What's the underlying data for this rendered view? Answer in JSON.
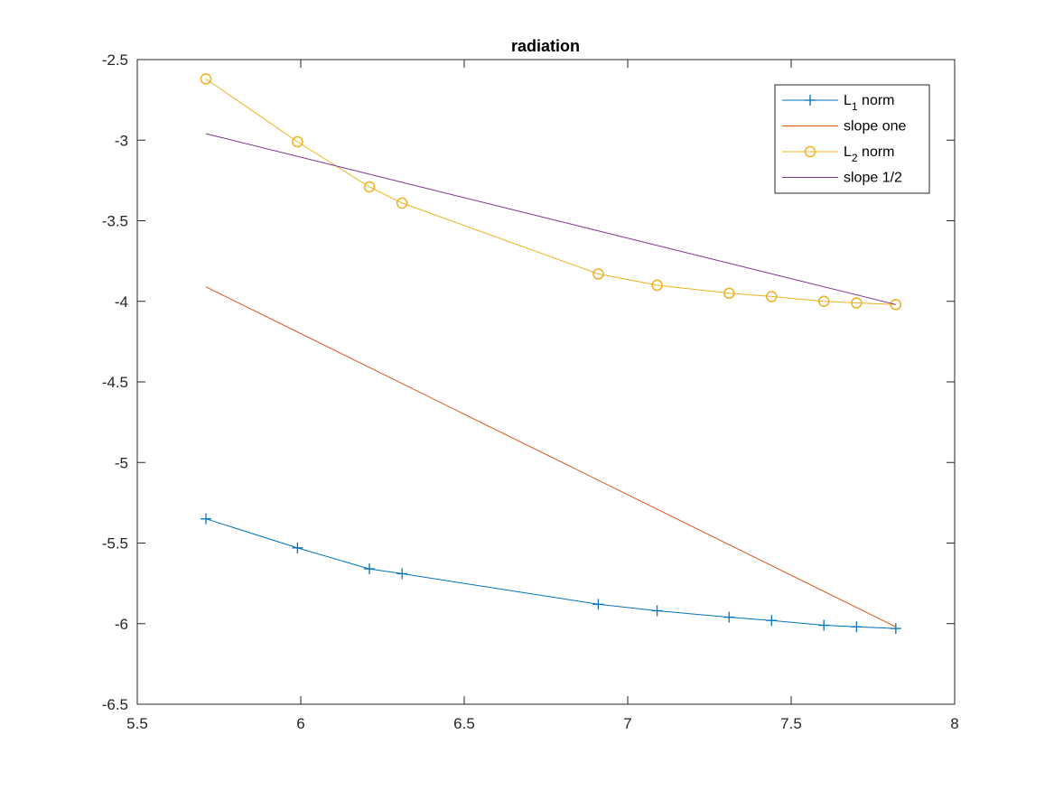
{
  "chart_data": {
    "type": "line",
    "title": "radiation",
    "xlabel": "",
    "ylabel": "",
    "xlim": [
      5.5,
      8
    ],
    "ylim": [
      -6.5,
      -2.5
    ],
    "xticks": [
      5.5,
      6,
      6.5,
      7,
      7.5,
      8
    ],
    "yticks": [
      -2.5,
      -3,
      -3.5,
      -4,
      -4.5,
      -5,
      -5.5,
      -6,
      -6.5
    ],
    "xtick_labels": [
      "5.5",
      "6",
      "6.5",
      "7",
      "7.5",
      "8"
    ],
    "ytick_labels": [
      "-2.5",
      "-3",
      "-3.5",
      "-4",
      "-4.5",
      "-5",
      "-5.5",
      "-6",
      "-6.5"
    ],
    "grid": false,
    "legend_position": "top-right",
    "series": [
      {
        "name": "L1 norm",
        "legend_base": "L",
        "legend_sub": "1",
        "legend_rest": " norm",
        "color": "#0072BD",
        "marker": "plus",
        "x": [
          5.71,
          5.99,
          6.21,
          6.31,
          6.91,
          7.09,
          7.31,
          7.44,
          7.6,
          7.7,
          7.82
        ],
        "y": [
          -5.35,
          -5.53,
          -5.66,
          -5.69,
          -5.88,
          -5.92,
          -5.96,
          -5.98,
          -6.01,
          -6.02,
          -6.03
        ]
      },
      {
        "name": "slope one",
        "color": "#D95319",
        "marker": "none",
        "x": [
          5.71,
          7.82
        ],
        "y": [
          -3.91,
          -6.02
        ]
      },
      {
        "name": "L2 norm",
        "legend_base": "L",
        "legend_sub": "2",
        "legend_rest": " norm",
        "color": "#EDB120",
        "marker": "circle",
        "x": [
          5.71,
          5.99,
          6.21,
          6.31,
          6.91,
          7.09,
          7.31,
          7.44,
          7.6,
          7.7,
          7.82
        ],
        "y": [
          -2.62,
          -3.01,
          -3.29,
          -3.39,
          -3.83,
          -3.9,
          -3.95,
          -3.97,
          -4.0,
          -4.01,
          -4.02
        ]
      },
      {
        "name": "slope 1/2",
        "color": "#7E2F8E",
        "marker": "none",
        "x": [
          5.71,
          7.82
        ],
        "y": [
          -2.96,
          -4.02
        ]
      }
    ]
  }
}
